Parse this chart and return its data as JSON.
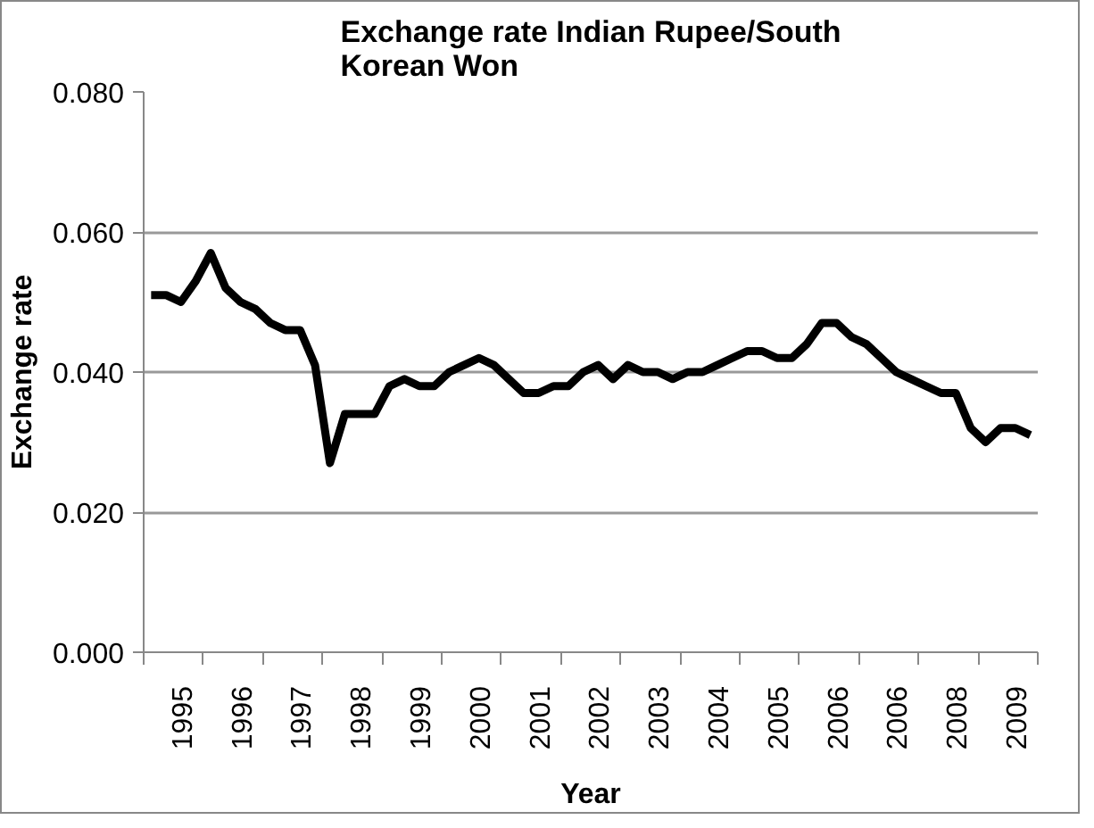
{
  "chart_data": {
    "type": "line",
    "title": "Exchange rate Indian Rupee/South Korean Won",
    "xlabel": "Year",
    "ylabel": "Exchange rate",
    "categories": [
      null,
      null,
      "1995",
      null,
      null,
      null,
      "1996",
      null,
      null,
      null,
      "1997",
      null,
      null,
      null,
      "1998",
      null,
      null,
      null,
      "1999",
      null,
      null,
      null,
      "2000",
      null,
      null,
      null,
      "2001",
      null,
      null,
      null,
      "2002",
      null,
      null,
      null,
      "2003",
      null,
      null,
      null,
      "2004",
      null,
      null,
      null,
      "2005",
      null,
      null,
      null,
      "2006",
      null,
      null,
      null,
      "2006",
      null,
      null,
      null,
      "2008",
      null,
      null,
      null,
      "2009",
      null
    ],
    "series": [
      {
        "color": "#000000",
        "values": [
          0.051,
          0.051,
          0.05,
          0.053,
          0.057,
          0.052,
          0.05,
          0.049,
          0.047,
          0.046,
          0.046,
          0.041,
          0.027,
          0.034,
          0.034,
          0.034,
          0.038,
          0.039,
          0.038,
          0.038,
          0.04,
          0.041,
          0.042,
          0.041,
          0.039,
          0.037,
          0.037,
          0.038,
          0.038,
          0.04,
          0.041,
          0.039,
          0.041,
          0.04,
          0.04,
          0.039,
          0.04,
          0.04,
          0.041,
          0.042,
          0.043,
          0.043,
          0.042,
          0.042,
          0.044,
          0.047,
          0.047,
          0.045,
          0.044,
          0.042,
          0.04,
          0.039,
          0.038,
          0.037,
          0.037,
          0.032,
          0.03,
          0.032,
          0.032,
          0.031
        ]
      }
    ],
    "ylim": [
      0,
      0.08
    ],
    "yticks": [
      {
        "value": 0,
        "label": "0.000"
      },
      {
        "value": 0.02,
        "label": "0.020"
      },
      {
        "value": 0.04,
        "label": "0.040"
      },
      {
        "value": 0.06,
        "label": "0.060"
      },
      {
        "value": 0.08,
        "label": "0.080"
      }
    ],
    "grid": "y",
    "line_style": "solid",
    "marker": "none"
  }
}
